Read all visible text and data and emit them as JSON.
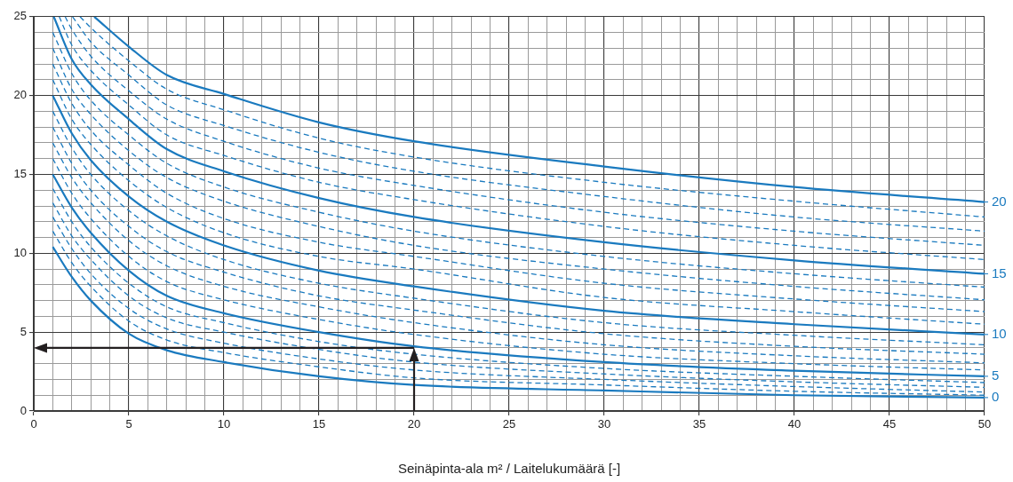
{
  "chart_data": {
    "type": "line",
    "legend": "right",
    "xlabel": "Seinäpinta-ala m² / Laitelukumäärä [-]",
    "grid": true,
    "marker": "none",
    "xlim": [
      0,
      50
    ],
    "ylim": [
      0,
      25
    ],
    "xticks": [
      0,
      {
        "value": 1,
        "label": null
      },
      {
        "value": 2,
        "label": null
      },
      {
        "value": 3,
        "label": null
      },
      {
        "value": 4,
        "label": null
      },
      5,
      {
        "value": 6,
        "label": null
      },
      {
        "value": 7,
        "label": null
      },
      {
        "value": 8,
        "label": null
      },
      {
        "value": 9,
        "label": null
      },
      10,
      {
        "value": 11,
        "label": null
      },
      {
        "value": 12,
        "label": null
      },
      {
        "value": 13,
        "label": null
      },
      {
        "value": 14,
        "label": null
      },
      15,
      {
        "value": 16,
        "label": null
      },
      {
        "value": 17,
        "label": null
      },
      {
        "value": 18,
        "label": null
      },
      {
        "value": 19,
        "label": null
      },
      20,
      {
        "value": 21,
        "label": null
      },
      {
        "value": 22,
        "label": null
      },
      {
        "value": 23,
        "label": null
      },
      {
        "value": 24,
        "label": null
      },
      25,
      {
        "value": 26,
        "label": null
      },
      {
        "value": 27,
        "label": null
      },
      {
        "value": 28,
        "label": null
      },
      {
        "value": 29,
        "label": null
      },
      30,
      {
        "value": 31,
        "label": null
      },
      {
        "value": 32,
        "label": null
      },
      {
        "value": 33,
        "label": null
      },
      {
        "value": 34,
        "label": null
      },
      35,
      {
        "value": 36,
        "label": null
      },
      {
        "value": 37,
        "label": null
      },
      {
        "value": 38,
        "label": null
      },
      {
        "value": 39,
        "label": null
      },
      40,
      {
        "value": 41,
        "label": null
      },
      {
        "value": 42,
        "label": null
      },
      {
        "value": 43,
        "label": null
      },
      {
        "value": 44,
        "label": null
      },
      45,
      {
        "value": 46,
        "label": null
      },
      {
        "value": 47,
        "label": null
      },
      {
        "value": 48,
        "label": null
      },
      {
        "value": 49,
        "label": null
      },
      50
    ],
    "yticks": [
      0,
      {
        "value": 1,
        "label": null
      },
      {
        "value": 2,
        "label": null
      },
      {
        "value": 3,
        "label": null
      },
      {
        "value": 4,
        "label": null
      },
      5,
      {
        "value": 6,
        "label": null
      },
      {
        "value": 7,
        "label": null
      },
      {
        "value": 8,
        "label": null
      },
      {
        "value": 9,
        "label": null
      },
      10,
      {
        "value": 11,
        "label": null
      },
      {
        "value": 12,
        "label": null
      },
      {
        "value": 13,
        "label": null
      },
      {
        "value": 14,
        "label": null
      },
      15,
      {
        "value": 16,
        "label": null
      },
      {
        "value": 17,
        "label": null
      },
      {
        "value": 18,
        "label": null
      },
      {
        "value": 19,
        "label": null
      },
      20,
      {
        "value": 21,
        "label": null
      },
      {
        "value": 22,
        "label": null
      },
      {
        "value": 23,
        "label": null
      },
      {
        "value": 24,
        "label": null
      },
      25
    ],
    "series": [
      {
        "name": "0",
        "color": "#1a7abf",
        "line_style": "solid",
        "x": [
          1,
          2,
          3,
          5,
          7,
          10,
          15,
          20,
          30,
          40,
          50
        ],
        "values": [
          10.4,
          8.5,
          7.0,
          4.9,
          3.85,
          3.1,
          2.2,
          1.65,
          1.3,
          1.0,
          0.85
        ]
      },
      {
        "color": "#1a7abf",
        "line_style": "dashed",
        "x": [
          1,
          2,
          3,
          5,
          7,
          10,
          15,
          20,
          30,
          40,
          50
        ],
        "values": [
          11.4,
          9.4,
          7.9,
          5.7,
          4.5,
          3.7,
          2.8,
          2.1,
          1.65,
          1.25,
          1.0
        ]
      },
      {
        "color": "#1a7abf",
        "line_style": "dashed",
        "x": [
          1,
          2,
          3,
          5,
          7,
          10,
          15,
          20,
          30,
          40,
          50
        ],
        "values": [
          12.3,
          10.3,
          8.7,
          6.5,
          5.2,
          4.3,
          3.3,
          2.6,
          2.0,
          1.55,
          1.2
        ]
      },
      {
        "color": "#1a7abf",
        "line_style": "dashed",
        "x": [
          1,
          2,
          3,
          5,
          7,
          10,
          15,
          20,
          30,
          40,
          50
        ],
        "values": [
          13.2,
          11.1,
          9.6,
          7.3,
          5.9,
          5.0,
          3.9,
          3.1,
          2.35,
          1.85,
          1.5
        ]
      },
      {
        "color": "#1a7abf",
        "line_style": "dashed",
        "x": [
          1,
          2,
          3,
          5,
          7,
          10,
          15,
          20,
          30,
          40,
          50
        ],
        "values": [
          14.1,
          12.0,
          10.4,
          8.1,
          6.6,
          5.6,
          4.4,
          3.6,
          2.7,
          2.2,
          1.8
        ]
      },
      {
        "name": "5",
        "color": "#1a7abf",
        "line_style": "solid",
        "x": [
          1,
          2,
          3,
          5,
          7,
          10,
          15,
          20,
          30,
          40,
          50
        ],
        "values": [
          15.0,
          12.9,
          11.3,
          8.9,
          7.3,
          6.2,
          5.0,
          4.1,
          3.1,
          2.55,
          2.2
        ]
      },
      {
        "color": "#1a7abf",
        "line_style": "dashed",
        "x": [
          1,
          2,
          3,
          5,
          7,
          10,
          15,
          20,
          30,
          40,
          50
        ],
        "values": [
          16.0,
          13.8,
          12.2,
          9.8,
          8.2,
          7.05,
          5.8,
          4.85,
          3.6,
          3.0,
          2.6
        ]
      },
      {
        "color": "#1a7abf",
        "line_style": "dashed",
        "x": [
          1,
          2,
          3,
          5,
          7,
          10,
          15,
          20,
          30,
          40,
          50
        ],
        "values": [
          17.0,
          14.8,
          13.2,
          10.8,
          9.2,
          7.9,
          6.6,
          5.6,
          4.2,
          3.5,
          3.05
        ]
      },
      {
        "color": "#1a7abf",
        "line_style": "dashed",
        "x": [
          1,
          2,
          3,
          5,
          7,
          10,
          15,
          20,
          30,
          40,
          50
        ],
        "values": [
          18.0,
          15.7,
          14.0,
          11.7,
          10.1,
          8.8,
          7.3,
          6.4,
          4.9,
          4.1,
          3.6
        ]
      },
      {
        "color": "#1a7abf",
        "line_style": "dashed",
        "x": [
          1,
          2,
          3,
          5,
          7,
          10,
          15,
          20,
          30,
          40,
          50
        ],
        "values": [
          19.0,
          16.7,
          15.0,
          12.7,
          11.1,
          9.6,
          8.1,
          7.15,
          5.6,
          4.8,
          4.2
        ]
      },
      {
        "name": "10",
        "color": "#1a7abf",
        "line_style": "solid",
        "x": [
          1,
          2,
          3,
          5,
          7,
          10,
          15,
          20,
          30,
          40,
          50
        ],
        "values": [
          20.0,
          17.6,
          15.9,
          13.6,
          12.0,
          10.5,
          8.9,
          7.9,
          6.35,
          5.5,
          4.85
        ]
      },
      {
        "color": "#1a7abf",
        "line_style": "dashed",
        "x": [
          1,
          2,
          3,
          5,
          7,
          10,
          15,
          20,
          30,
          40,
          50
        ],
        "values": [
          21.0,
          18.5,
          16.9,
          14.6,
          12.9,
          11.3,
          9.8,
          9.0,
          7.2,
          6.3,
          5.5
        ]
      },
      {
        "color": "#1a7abf",
        "line_style": "dashed",
        "x": [
          1,
          2,
          3,
          5,
          7,
          10,
          15,
          20,
          30,
          40,
          50
        ],
        "values": [
          22.0,
          19.5,
          17.8,
          15.6,
          13.8,
          12.2,
          10.7,
          9.8,
          8.1,
          7.1,
          6.3
        ]
      },
      {
        "color": "#1a7abf",
        "line_style": "dashed",
        "x": [
          1,
          2,
          3,
          5,
          7,
          10,
          15,
          20,
          30,
          40,
          50
        ],
        "values": [
          23.0,
          20.4,
          18.8,
          16.5,
          14.8,
          13.3,
          11.7,
          10.5,
          9.0,
          7.9,
          7.05
        ]
      },
      {
        "color": "#1a7abf",
        "line_style": "dashed",
        "x": [
          1,
          2,
          3,
          5,
          7,
          10,
          15,
          20,
          30,
          40,
          50
        ],
        "values": [
          24.0,
          21.4,
          19.7,
          17.5,
          15.7,
          14.2,
          12.6,
          11.4,
          9.8,
          8.7,
          7.85
        ]
      },
      {
        "name": "15",
        "color": "#1a7abf",
        "line_style": "solid",
        "x": [
          1.05,
          2,
          3,
          5,
          7,
          10,
          15,
          20,
          30,
          40,
          50
        ],
        "values": [
          25,
          22.3,
          20.7,
          18.5,
          16.6,
          15.2,
          13.5,
          12.3,
          10.7,
          9.55,
          8.7
        ]
      },
      {
        "color": "#1a7abf",
        "line_style": "dashed",
        "x": [
          1.34,
          2,
          3,
          5,
          7,
          10,
          15,
          20,
          30,
          40,
          50
        ],
        "values": [
          25,
          23.2,
          21.6,
          19.4,
          17.5,
          16.2,
          14.5,
          13.4,
          11.7,
          10.5,
          9.6
        ]
      },
      {
        "color": "#1a7abf",
        "line_style": "dashed",
        "x": [
          1.65,
          2,
          3,
          5,
          7,
          10,
          15,
          20,
          30,
          40,
          50
        ],
        "values": [
          25,
          24.2,
          22.5,
          20.3,
          18.5,
          17.1,
          15.4,
          14.3,
          12.6,
          11.4,
          10.5
        ]
      },
      {
        "color": "#1a7abf",
        "line_style": "dashed",
        "x": [
          2.04,
          3,
          5,
          7,
          10,
          15,
          20,
          30,
          40,
          50
        ],
        "values": [
          25,
          23.4,
          21.3,
          19.4,
          18.1,
          16.4,
          15.2,
          13.6,
          12.3,
          11.4
        ]
      },
      {
        "color": "#1a7abf",
        "line_style": "dashed",
        "x": [
          2.43,
          3,
          5,
          7,
          10,
          15,
          20,
          30,
          40,
          50
        ],
        "values": [
          25,
          24.3,
          22.2,
          20.4,
          19.1,
          17.3,
          16.1,
          14.5,
          13.3,
          12.3
        ]
      },
      {
        "name": "20",
        "color": "#1a7abf",
        "line_style": "solid",
        "x": [
          3.18,
          5,
          7,
          10,
          15,
          20,
          30,
          40,
          50
        ],
        "values": [
          25,
          23.1,
          21.3,
          20.1,
          18.3,
          17.1,
          15.5,
          14.2,
          13.25
        ]
      }
    ],
    "ref_lines": [
      {
        "axis": "x",
        "value": 20,
        "color": "#231f20",
        "line_style": "solid"
      },
      {
        "axis": "y",
        "value": 4,
        "color": "#231f20",
        "line_style": "solid"
      }
    ]
  }
}
